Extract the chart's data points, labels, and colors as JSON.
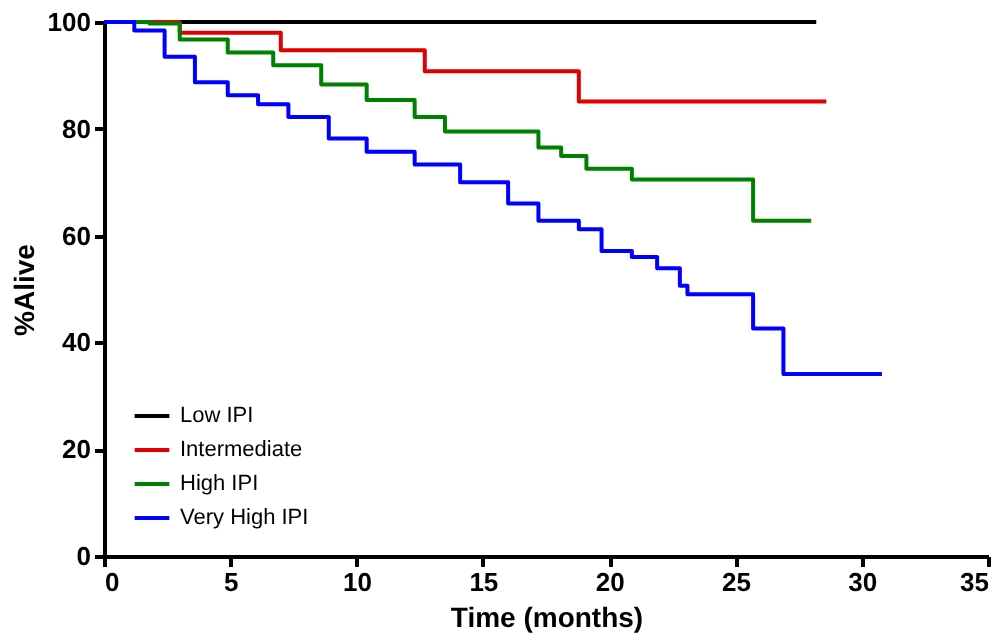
{
  "chart_data": {
    "type": "step",
    "xlabel": "Time  (months)",
    "ylabel": "%Alive",
    "xlim": [
      0,
      35
    ],
    "xticks": [
      0,
      5,
      10,
      15,
      20,
      25,
      30,
      35
    ],
    "ylim": [
      0,
      100
    ],
    "yticks": [
      0,
      20,
      40,
      60,
      80,
      100
    ],
    "grid": false,
    "legend": "bottom left",
    "line_style": "solid",
    "series": [
      {
        "name": "Low IPI",
        "color": "#000000",
        "x": [
          0,
          28.2
        ],
        "values": [
          100,
          100
        ]
      },
      {
        "name": "Intermediate",
        "color": "#e00000",
        "x": [
          0,
          3.0,
          7.0,
          12.7,
          18.8,
          28.6
        ],
        "values": [
          100,
          98,
          94.7,
          90.8,
          85.1,
          85.1
        ]
      },
      {
        "name": "High IPI",
        "color": "#008000",
        "x": [
          0,
          1.8,
          3.0,
          4.9,
          6.7,
          8.6,
          10.4,
          12.3,
          13.5,
          17.2,
          18.1,
          19.1,
          20.9,
          25.7,
          28.0
        ],
        "values": [
          100,
          99.7,
          96.7,
          94.3,
          91.9,
          88.3,
          85.4,
          82.2,
          79.5,
          76.5,
          74.9,
          72.5,
          70.5,
          62.8,
          62.8
        ]
      },
      {
        "name": "Very High IPI",
        "color": "#0000ff",
        "x": [
          0,
          1.2,
          2.4,
          3.6,
          4.9,
          6.1,
          7.3,
          8.9,
          10.4,
          12.3,
          14.1,
          16.0,
          17.2,
          18.8,
          19.7,
          20.9,
          21.9,
          22.8,
          23.1,
          25.7,
          26.9,
          30.8
        ],
        "values": [
          100,
          98.4,
          93.5,
          88.7,
          86.3,
          84.6,
          82.2,
          78.2,
          75.7,
          73.3,
          70,
          66,
          62.8,
          61.2,
          57.1,
          56,
          53.9,
          50.6,
          49,
          42.6,
          34.1,
          34.1
        ]
      }
    ]
  }
}
